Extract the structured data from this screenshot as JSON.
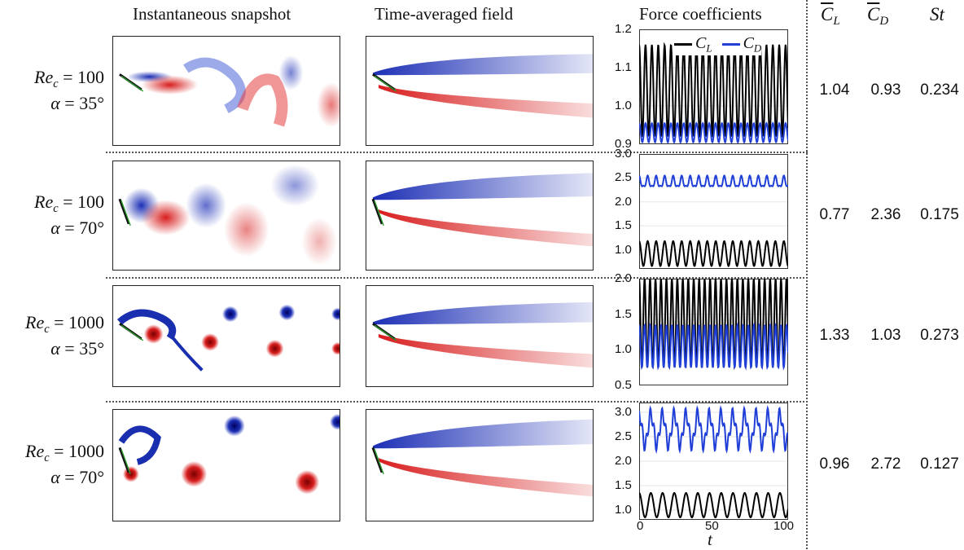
{
  "headers": {
    "snapshot": "Instantaneous snapshot",
    "averaged": "Time-averaged field",
    "force": "Force coefficients",
    "cl_symbol": "C",
    "cl_sub": "L",
    "cd_symbol": "C",
    "cd_sub": "D",
    "st": "St"
  },
  "legend": {
    "cl_label": "C",
    "cl_sub": "L",
    "cd_label": "C",
    "cd_sub": "D",
    "cl_color": "#000000",
    "cd_color": "#1f3fd6"
  },
  "x_axis": {
    "label": "t",
    "ticks": [
      "0",
      "50",
      "100"
    ]
  },
  "rows": [
    {
      "re_label": "Re",
      "re_sub": "c",
      "re_eq": " = 100",
      "alpha_label": "α",
      "alpha_eq": " = 35°",
      "cl_mean": "1.04",
      "cd_mean": "0.93",
      "st": "0.234",
      "y_ticks": [
        "1.2",
        "1.1",
        "1.0",
        "0.9"
      ]
    },
    {
      "re_label": "Re",
      "re_sub": "c",
      "re_eq": " = 100",
      "alpha_label": "α",
      "alpha_eq": " = 70°",
      "cl_mean": "0.77",
      "cd_mean": "2.36",
      "st": "0.175",
      "y_ticks": [
        "3.0",
        "2.5",
        "2.0",
        "1.5",
        "1.0"
      ]
    },
    {
      "re_label": "Re",
      "re_sub": "c",
      "re_eq": " = 1000",
      "alpha_label": "α",
      "alpha_eq": " = 35°",
      "cl_mean": "1.33",
      "cd_mean": "1.03",
      "st": "0.273",
      "y_ticks": [
        "2.0",
        "1.5",
        "1.0",
        "0.5"
      ]
    },
    {
      "re_label": "Re",
      "re_sub": "c",
      "re_eq": " = 1000",
      "alpha_label": "α",
      "alpha_eq": " = 70°",
      "cl_mean": "0.96",
      "cd_mean": "2.72",
      "st": "0.127",
      "y_ticks": [
        "3.0",
        "2.5",
        "2.0",
        "1.5",
        "1.0"
      ]
    }
  ],
  "chart_data": [
    {
      "type": "line",
      "title": "Force coefficients",
      "xlabel": "t",
      "xlim": [
        0,
        100
      ],
      "ylim": [
        0.9,
        1.2
      ],
      "series": [
        {
          "name": "C_L",
          "min": 0.92,
          "max": 1.16,
          "cycles": 23.4
        },
        {
          "name": "C_D",
          "min": 0.905,
          "max": 0.955,
          "cycles": 23.4
        }
      ]
    },
    {
      "type": "line",
      "title": "Force coefficients",
      "xlabel": "t",
      "xlim": [
        0,
        100
      ],
      "ylim": [
        0.6,
        3.0
      ],
      "series": [
        {
          "name": "C_L",
          "min": 0.66,
          "max": 1.18,
          "cycles": 17.5
        },
        {
          "name": "C_D",
          "min": 2.25,
          "max": 2.55,
          "cycles": 17.5
        }
      ]
    },
    {
      "type": "line",
      "title": "Force coefficients",
      "xlabel": "t",
      "xlim": [
        0,
        100
      ],
      "ylim": [
        0.5,
        2.0
      ],
      "series": [
        {
          "name": "C_L",
          "min": 0.75,
          "max": 2.0,
          "cycles": 27.3
        },
        {
          "name": "C_D",
          "min": 0.75,
          "max": 1.35,
          "cycles": 27.3
        }
      ]
    },
    {
      "type": "line",
      "title": "Force coefficients",
      "xlabel": "t",
      "xlim": [
        0,
        100
      ],
      "ylim": [
        0.8,
        3.2
      ],
      "series": [
        {
          "name": "C_L",
          "min": 0.85,
          "max": 1.35,
          "cycles": 12.7
        },
        {
          "name": "C_D",
          "min": 2.2,
          "max": 3.1,
          "cycles": 12.7
        }
      ]
    }
  ]
}
